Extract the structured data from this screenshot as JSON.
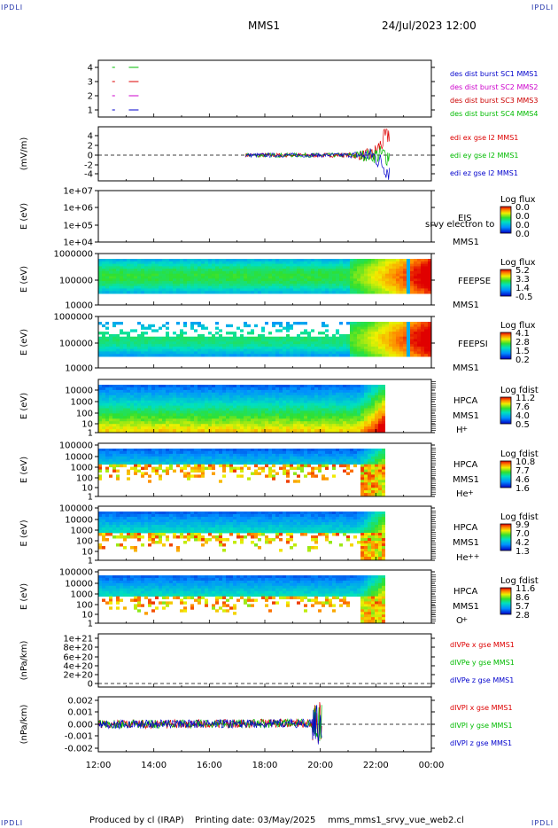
{
  "corner_label": "IPDLI",
  "header": {
    "mission": "MMS1",
    "datetime": "24/Jul/2023 12:00"
  },
  "footer": {
    "produced_by": "Produced by cl (IRAP)",
    "printing_date": "Printing date: 03/May/2025",
    "filename": "mms_mms1_srvy_vue_web2.cl"
  },
  "x_axis": {
    "ticks": [
      "12:00",
      "14:00",
      "16:00",
      "18:00",
      "20:00",
      "22:00",
      "00:00"
    ]
  },
  "chart_data": [
    {
      "type": "line",
      "id": "burst",
      "yticks": [
        "4",
        "3",
        "2",
        "1"
      ],
      "legend": [
        {
          "label": "des dist burst SC1 MMS1",
          "color": "#0000cc"
        },
        {
          "label": "des dist burst SC2 MMS2",
          "color": "#cc00cc"
        },
        {
          "label": "des dist burst SC3 MMS3",
          "color": "#cc0000"
        },
        {
          "label": "des dist burst SC4 MMS4",
          "color": "#00bb00"
        }
      ],
      "series": [
        {
          "level": 4,
          "color": "#00bb00",
          "segments": [
            [
              12.5,
              12.6
            ],
            [
              13.1,
              13.45
            ]
          ]
        },
        {
          "level": 3,
          "color": "#dd0000",
          "segments": [
            [
              12.5,
              12.6
            ],
            [
              13.1,
              13.45
            ]
          ]
        },
        {
          "level": 2,
          "color": "#cc00cc",
          "segments": [
            [
              12.5,
              12.6
            ],
            [
              13.1,
              13.45
            ]
          ]
        },
        {
          "level": 1,
          "color": "#0000cc",
          "segments": [
            [
              12.5,
              12.6
            ],
            [
              13.1,
              13.45
            ]
          ]
        }
      ]
    },
    {
      "type": "line",
      "id": "edi",
      "ylabel": "(mV/m)",
      "yticks": [
        "4",
        "2",
        "0",
        "-2",
        "-4"
      ],
      "ylim": [
        -5,
        5
      ],
      "legend": [
        {
          "label": "edi ex gse l2 MMS1",
          "color": "#dd0000"
        },
        {
          "label": "edi ey gse l2 MMS1",
          "color": "#00bb00"
        },
        {
          "label": "edi ez gse l2 MMS1",
          "color": "#0000cc"
        }
      ],
      "x_range": [
        17.3,
        22.5
      ]
    },
    {
      "type": "heatmap",
      "id": "eis",
      "ylabel": "E (eV)",
      "yticks": [
        "1e+07",
        "1e+06",
        "1e+05",
        "1e+04"
      ],
      "labels": [
        "EIS",
        "MMS1"
      ],
      "overlay_text": "srvy electron to",
      "cbar_title": "Log flux",
      "cbar_ticks": [
        "0.0",
        "0.0",
        "0.0",
        "0.0"
      ]
    },
    {
      "type": "heatmap",
      "id": "feepse",
      "ylabel": "E (eV)",
      "yticks": [
        "1000000",
        "100000",
        "10000"
      ],
      "labels": [
        "FEEPSE",
        "MMS1"
      ],
      "cbar_title": "Log flux",
      "cbar_ticks": [
        "5.2",
        "3.3",
        "1.4",
        "-0.5"
      ]
    },
    {
      "type": "heatmap",
      "id": "feepsi",
      "ylabel": "E (eV)",
      "yticks": [
        "1000000",
        "100000",
        "10000"
      ],
      "labels": [
        "FEEPSI",
        "MMS1"
      ],
      "cbar_title": "Log flux",
      "cbar_ticks": [
        "4.1",
        "2.8",
        "1.5",
        "0.2"
      ]
    },
    {
      "type": "heatmap",
      "id": "hpca_h",
      "ylabel": "E (eV)",
      "yticks": [
        "10000",
        "1000",
        "100",
        "10",
        "1"
      ],
      "labels": [
        "HPCA",
        "MMS1"
      ],
      "species": "H",
      "charge": "+",
      "cbar_title": "Log fdist",
      "cbar_ticks": [
        "11.2",
        "7.6",
        "4.0",
        "0.5"
      ]
    },
    {
      "type": "heatmap",
      "id": "hpca_he",
      "ylabel": "E (eV)",
      "yticks": [
        "100000",
        "10000",
        "1000",
        "100",
        "10",
        "1"
      ],
      "labels": [
        "HPCA",
        "MMS1"
      ],
      "species": "He",
      "charge": "+",
      "cbar_title": "Log fdist",
      "cbar_ticks": [
        "10.8",
        "7.7",
        "4.6",
        "1.6"
      ]
    },
    {
      "type": "heatmap",
      "id": "hpca_hepp",
      "ylabel": "E (eV)",
      "yticks": [
        "100000",
        "10000",
        "1000",
        "100",
        "10",
        "1"
      ],
      "labels": [
        "HPCA",
        "MMS1"
      ],
      "species": "He",
      "charge": "++",
      "cbar_title": "Log fdist",
      "cbar_ticks": [
        "9.9",
        "7.0",
        "4.2",
        "1.3"
      ]
    },
    {
      "type": "heatmap",
      "id": "hpca_o",
      "ylabel": "E (eV)",
      "yticks": [
        "100000",
        "10000",
        "1000",
        "100",
        "10",
        "1"
      ],
      "labels": [
        "HPCA",
        "MMS1"
      ],
      "species": "O",
      "charge": "+",
      "cbar_title": "Log fdist",
      "cbar_ticks": [
        "11.6",
        "8.6",
        "5.7",
        "2.8"
      ]
    },
    {
      "type": "line",
      "id": "divpe",
      "ylabel": "(nPa/km)",
      "yticks": [
        "1e+21",
        "8e+20",
        "6e+20",
        "4e+20",
        "2e+20",
        "0"
      ],
      "legend": [
        {
          "label": "dIVPe x gse MMS1",
          "color": "#dd0000"
        },
        {
          "label": "dIVPe y gse MMS1",
          "color": "#00bb00"
        },
        {
          "label": "dIVPe z gse MMS1",
          "color": "#0000cc"
        }
      ]
    },
    {
      "type": "line",
      "id": "divpi",
      "ylabel": "(nPa/km)",
      "yticks": [
        "0.002",
        "0.001",
        "0.000",
        "-0.001",
        "-0.002"
      ],
      "ylim": [
        -0.0025,
        0.002
      ],
      "legend": [
        {
          "label": "dIVPI x gse MMS1",
          "color": "#dd0000"
        },
        {
          "label": "dIVPI y gse MMS1",
          "color": "#00bb00"
        },
        {
          "label": "dIVPI z gse MMS1",
          "color": "#0000cc"
        }
      ],
      "x_range": [
        12.0,
        20.05
      ]
    }
  ]
}
